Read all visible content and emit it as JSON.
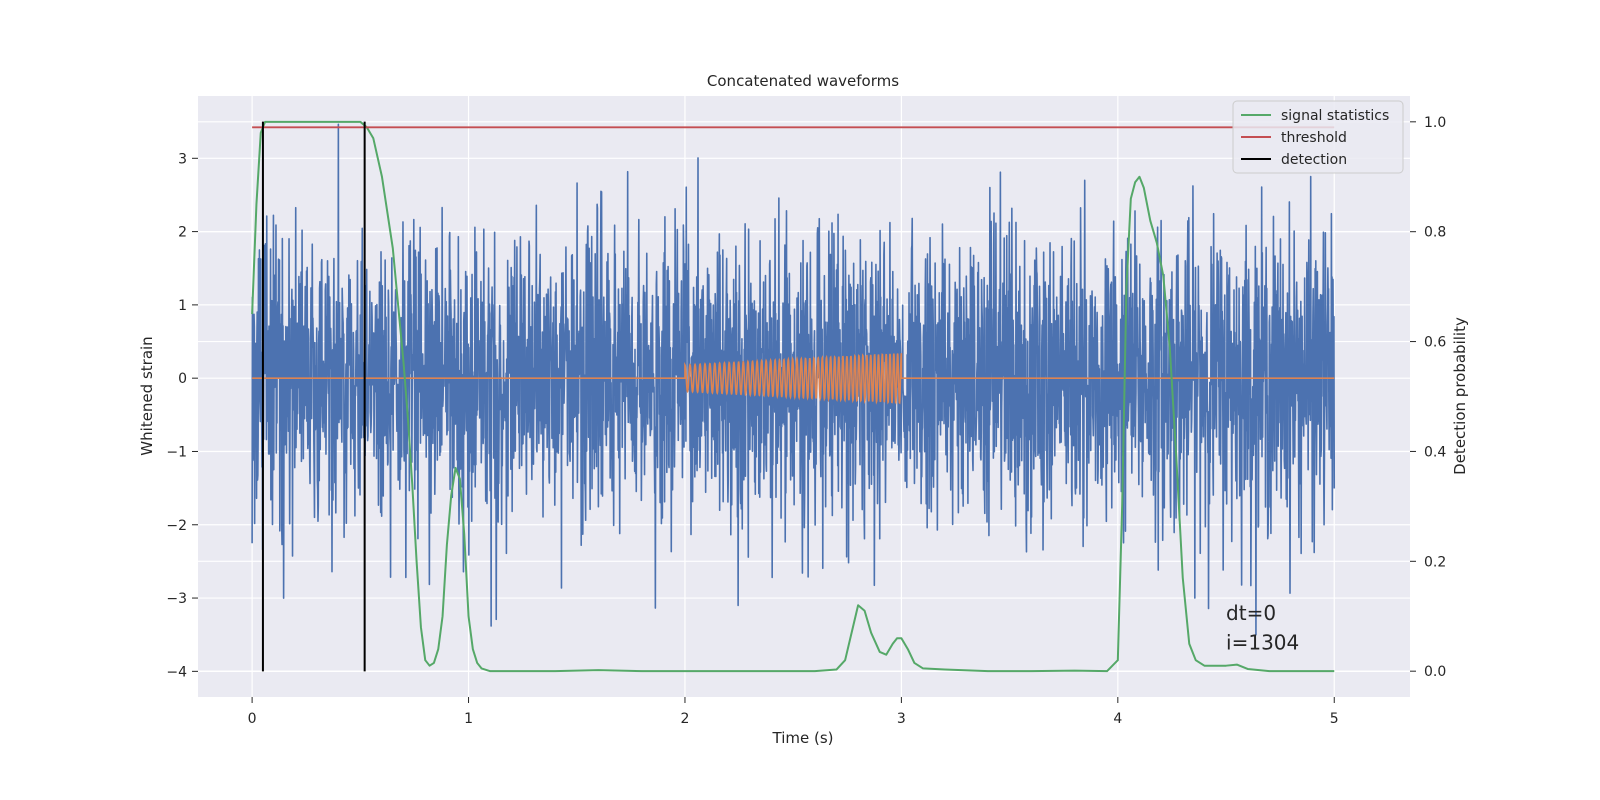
{
  "chart_data": {
    "type": "line",
    "title": "Concatenated waveforms",
    "xlabel": "Time (s)",
    "ylabel": "Whitened strain",
    "ylabel_right": "Detection probability",
    "xlim": [
      -0.25,
      5.35
    ],
    "ylim": [
      -4.35,
      3.85
    ],
    "ylim_right": [
      -0.047,
      1.047
    ],
    "xticks": [
      0,
      1,
      2,
      3,
      4,
      5
    ],
    "xtick_labels": [
      "0",
      "1",
      "2",
      "3",
      "4",
      "5"
    ],
    "yticks": [
      -4,
      -3,
      -2,
      -1,
      0,
      1,
      2,
      3
    ],
    "ytick_labels": [
      "−4",
      "−3",
      "−2",
      "−1",
      "0",
      "1",
      "2",
      "3"
    ],
    "yticks_right": [
      0.0,
      0.2,
      0.4,
      0.6,
      0.8,
      1.0
    ],
    "ytick_labels_right": [
      "0.0",
      "0.2",
      "0.4",
      "0.6",
      "0.8",
      "1.0"
    ],
    "grid": true,
    "legend_position": "top-right",
    "colors": {
      "strain": "#4c72b0",
      "injection": "#dd8452",
      "signal": "#55a868",
      "threshold": "#c44e52",
      "detection": "#000000",
      "background": "#eaeaf2",
      "grid": "#ffffff"
    },
    "strain": {
      "x_range": [
        0,
        5
      ],
      "description_amplitude_envelope": [
        -3.5,
        3.5
      ]
    },
    "injection": {
      "x_range": [
        2.0,
        3.0
      ],
      "amplitude_start": 0.18,
      "amplitude_end": 0.34,
      "cycles": 50
    },
    "series": [
      {
        "name": "signal statistics",
        "axis": "right",
        "x": [
          0.0,
          0.02,
          0.04,
          0.06,
          0.08,
          0.12,
          0.2,
          0.3,
          0.4,
          0.5,
          0.53,
          0.56,
          0.6,
          0.65,
          0.7,
          0.72,
          0.74,
          0.76,
          0.78,
          0.8,
          0.82,
          0.84,
          0.86,
          0.88,
          0.9,
          0.92,
          0.94,
          0.96,
          0.98,
          1.0,
          1.02,
          1.04,
          1.06,
          1.1,
          1.2,
          1.4,
          1.6,
          1.8,
          2.0,
          2.2,
          2.4,
          2.6,
          2.7,
          2.74,
          2.77,
          2.8,
          2.83,
          2.86,
          2.9,
          2.93,
          2.96,
          2.98,
          3.0,
          3.03,
          3.06,
          3.1,
          3.2,
          3.4,
          3.6,
          3.8,
          3.95,
          4.0,
          4.02,
          4.04,
          4.06,
          4.08,
          4.1,
          4.12,
          4.15,
          4.18,
          4.21,
          4.24,
          4.27,
          4.3,
          4.33,
          4.36,
          4.4,
          4.5,
          4.55,
          4.6,
          4.7,
          5.0
        ],
        "y": [
          0.65,
          0.85,
          0.98,
          1.0,
          1.0,
          1.0,
          1.0,
          1.0,
          1.0,
          1.0,
          0.99,
          0.97,
          0.9,
          0.77,
          0.56,
          0.46,
          0.34,
          0.2,
          0.08,
          0.02,
          0.01,
          0.015,
          0.04,
          0.1,
          0.23,
          0.32,
          0.37,
          0.35,
          0.25,
          0.1,
          0.04,
          0.015,
          0.005,
          0.0,
          0.0,
          0.0,
          0.002,
          0.0,
          0.0,
          0.0,
          0.0,
          0.0,
          0.003,
          0.02,
          0.07,
          0.12,
          0.11,
          0.07,
          0.035,
          0.03,
          0.05,
          0.06,
          0.06,
          0.04,
          0.015,
          0.005,
          0.003,
          0.0,
          0.0,
          0.001,
          0.0,
          0.02,
          0.3,
          0.7,
          0.86,
          0.89,
          0.9,
          0.88,
          0.82,
          0.78,
          0.72,
          0.59,
          0.39,
          0.17,
          0.05,
          0.02,
          0.01,
          0.01,
          0.012,
          0.004,
          0.0,
          0.0
        ]
      },
      {
        "name": "threshold",
        "axis": "right",
        "x": [
          0.0,
          5.0
        ],
        "y": [
          0.99,
          0.99
        ]
      },
      {
        "name": "detection",
        "axis": "left",
        "vlines_x": [
          0.05,
          0.52
        ],
        "ymin": -4.0,
        "ymax": 3.5
      }
    ],
    "annotations": [
      {
        "text": "dt=0",
        "x": 4.5,
        "y": -3.3
      },
      {
        "text": "i=1304",
        "x": 4.5,
        "y": -3.7
      }
    ]
  }
}
